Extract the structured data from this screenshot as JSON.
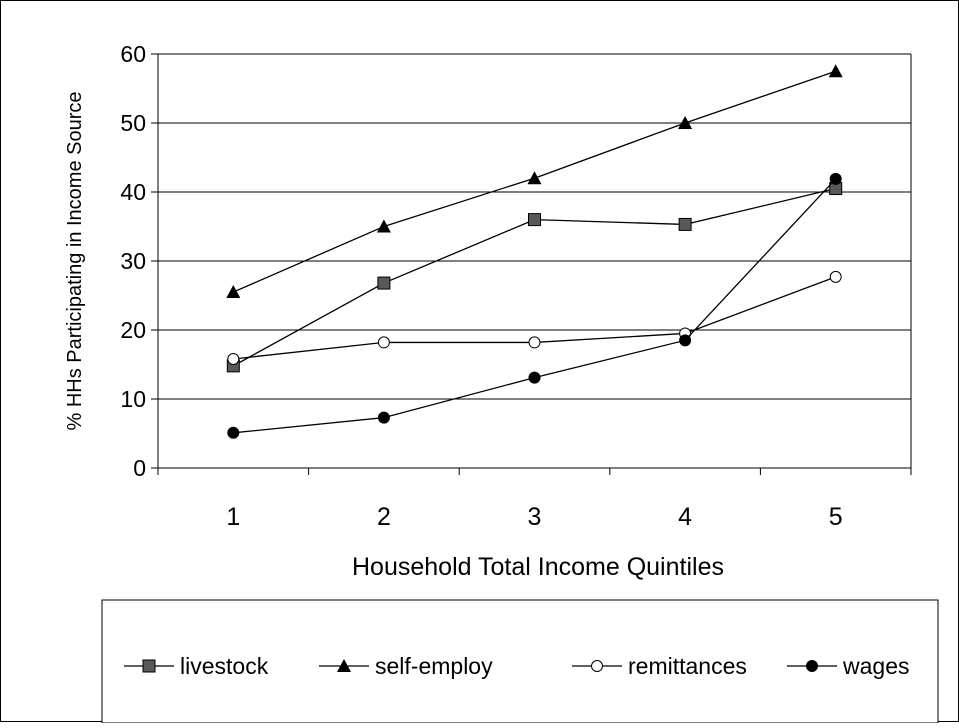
{
  "chart_data": {
    "type": "line",
    "title": "",
    "xlabel": "Household Total Income Quintiles",
    "ylabel": "% HHs Participating in Income Source",
    "categories": [
      "1",
      "2",
      "3",
      "4",
      "5"
    ],
    "ylim": [
      0,
      60
    ],
    "yticks": [
      "0",
      "10",
      "20",
      "30",
      "40",
      "50",
      "60"
    ],
    "grid": true,
    "legend_position": "bottom",
    "series": [
      {
        "name": "livestock",
        "marker": "square",
        "values": [
          14.8,
          26.8,
          36.0,
          35.3,
          40.5
        ]
      },
      {
        "name": "self-employ",
        "marker": "triangle",
        "values": [
          25.5,
          35.0,
          42.0,
          50.0,
          57.5
        ]
      },
      {
        "name": "remittances",
        "marker": "open-circle",
        "values": [
          15.8,
          18.2,
          18.2,
          19.5,
          27.7
        ]
      },
      {
        "name": "wages",
        "marker": "filled-circle",
        "values": [
          5.1,
          7.3,
          13.1,
          18.5,
          41.9
        ]
      }
    ]
  }
}
